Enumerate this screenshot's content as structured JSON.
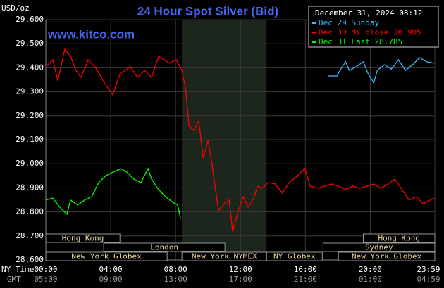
{
  "chart_data": {
    "type": "line",
    "title": "24 Hour Spot Silver (Bid)",
    "y_unit": "USD/oz",
    "website": "www.kitco.com",
    "timestamp": "December 31, 2024 08:12",
    "xlim": [
      0,
      23.98
    ],
    "xticks": [
      {
        "value": 0,
        "label": "00:00"
      },
      {
        "value": 4,
        "label": "04:00"
      },
      {
        "value": 8,
        "label": "08:00"
      },
      {
        "value": 12,
        "label": "12:00"
      },
      {
        "value": 16,
        "label": "16:00"
      },
      {
        "value": 20,
        "label": "20:00"
      },
      {
        "value": 23.98,
        "label": "23:59"
      }
    ],
    "x_tick_labels_gmt": [
      "05:00",
      "09:00",
      "13:00",
      "17:00",
      "21:00",
      "01:00",
      "04:59"
    ],
    "time_zone_labels": [
      "NY Time",
      "GMT"
    ],
    "ylim": [
      28.6,
      29.6
    ],
    "yticks": [
      {
        "value": 28.6,
        "label": "28.600"
      },
      {
        "value": 28.7,
        "label": "28.700"
      },
      {
        "value": 28.8,
        "label": "28.800"
      },
      {
        "value": 28.9,
        "label": "28.900"
      },
      {
        "value": 29.0,
        "label": "29.000"
      },
      {
        "value": 29.1,
        "label": "29.100"
      },
      {
        "value": 29.2,
        "label": "29.200"
      },
      {
        "value": 29.3,
        "label": "29.300"
      },
      {
        "value": 29.4,
        "label": "29.400"
      },
      {
        "value": 29.5,
        "label": "29.500"
      },
      {
        "value": 29.6,
        "label": "29.600"
      }
    ],
    "grid": true,
    "shaded_hours": [
      8.39,
      13.61
    ],
    "sessions": [
      {
        "label": "Hong Kong",
        "start": 0,
        "end": 4.57,
        "row": 0
      },
      {
        "label": "Hong Kong",
        "start": 19.57,
        "end": 23.98,
        "row": 0
      },
      {
        "label": "London",
        "start": 3.57,
        "end": 11.04,
        "row": 1
      },
      {
        "label": "Sydney",
        "start": 17.09,
        "end": 23.98,
        "row": 1
      },
      {
        "label": "New York Globex",
        "start": 0,
        "end": 7.48,
        "row": 2
      },
      {
        "label": "New York NYMEX",
        "start": 8.39,
        "end": 13.61,
        "row": 2
      },
      {
        "label": "NY Globex",
        "start": 13.61,
        "end": 17.04,
        "row": 2
      },
      {
        "label": "New York Globex",
        "start": 18.04,
        "end": 23.98,
        "row": 2
      }
    ],
    "series": [
      {
        "name": "Dec 29 Sunday",
        "color": "#33bbff",
        "x": [
          17.39,
          17.96,
          18.13,
          18.48,
          18.7,
          19.13,
          19.57,
          19.87,
          20.22,
          20.43,
          20.87,
          21.3,
          21.74,
          22.17,
          22.61,
          23.04,
          23.48,
          23.98
        ],
        "values": [
          29.366,
          29.366,
          29.389,
          29.425,
          29.389,
          29.404,
          29.425,
          29.375,
          29.337,
          29.389,
          29.413,
          29.395,
          29.433,
          29.389,
          29.413,
          29.442,
          29.425,
          29.419
        ]
      },
      {
        "name": "Dec 30 NY close 28.905",
        "color": "#ff0000",
        "x": [
          0,
          0.43,
          0.74,
          1.17,
          1.52,
          1.87,
          2.17,
          2.61,
          3.04,
          3.61,
          4.13,
          4.57,
          5.22,
          5.65,
          6.09,
          6.52,
          6.96,
          7.61,
          8.04,
          8.39,
          8.61,
          8.83,
          9.13,
          9.43,
          9.7,
          10.0,
          10.22,
          10.43,
          10.65,
          11.0,
          11.3,
          11.52,
          11.87,
          12.17,
          12.48,
          12.83,
          13.04,
          13.35,
          13.7,
          14.13,
          14.57,
          15.0,
          15.43,
          15.96,
          16.3,
          16.74,
          17.17,
          17.61,
          18.04,
          18.48,
          18.91,
          19.35,
          19.78,
          20.22,
          20.65,
          21.09,
          21.52,
          21.96,
          22.39,
          22.83,
          23.26,
          23.7,
          23.98
        ],
        "values": [
          29.404,
          29.433,
          29.346,
          29.477,
          29.448,
          29.389,
          29.36,
          29.433,
          29.404,
          29.337,
          29.287,
          29.375,
          29.404,
          29.36,
          29.389,
          29.36,
          29.448,
          29.419,
          29.433,
          29.389,
          29.316,
          29.156,
          29.141,
          29.179,
          29.024,
          29.097,
          29.009,
          28.907,
          28.805,
          28.834,
          28.849,
          28.717,
          28.805,
          28.863,
          28.819,
          28.857,
          28.907,
          28.898,
          28.922,
          28.916,
          28.878,
          28.922,
          28.945,
          28.98,
          28.907,
          28.898,
          28.907,
          28.916,
          28.907,
          28.892,
          28.907,
          28.898,
          28.907,
          28.916,
          28.898,
          28.916,
          28.936,
          28.892,
          28.849,
          28.863,
          28.834,
          28.849,
          28.857
        ]
      },
      {
        "name": "Dec 31 Last 28.785",
        "color": "#00ff00",
        "x": [
          0,
          0.43,
          0.87,
          1.3,
          1.52,
          1.96,
          2.39,
          2.83,
          3.26,
          3.7,
          4.13,
          4.65,
          5.0,
          5.43,
          5.87,
          6.3,
          6.52,
          6.96,
          7.39,
          7.83,
          8.13,
          8.3
        ],
        "values": [
          28.849,
          28.857,
          28.819,
          28.79,
          28.849,
          28.828,
          28.849,
          28.863,
          28.922,
          28.951,
          28.965,
          28.98,
          28.965,
          28.936,
          28.922,
          28.98,
          28.936,
          28.892,
          28.863,
          28.84,
          28.828,
          28.775
        ]
      }
    ]
  }
}
